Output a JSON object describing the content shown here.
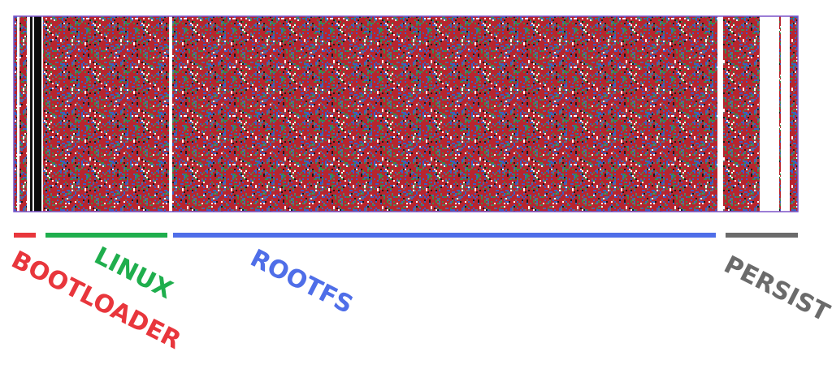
{
  "colors": {
    "noise_red": "#b8252e",
    "noise_blue": "#3a5fc4",
    "noise_green": "#3a8a4a",
    "noise_gray": "#6e6e6e",
    "noise_white": "#ffffff",
    "noise_black": "#1a1a1a",
    "border": "#7a52c8",
    "background": "#ffffff"
  },
  "segments": [
    {
      "key": "bootloader",
      "label": "BOOTLOADER",
      "color": "#e8363c"
    },
    {
      "key": "linux",
      "label": "LINUX",
      "color": "#1fae4d"
    },
    {
      "key": "rootfs",
      "label": "ROOTFS",
      "color": "#4f6ee8"
    },
    {
      "key": "persist",
      "label": "PERSIST",
      "color": "#6b6b6b"
    }
  ]
}
